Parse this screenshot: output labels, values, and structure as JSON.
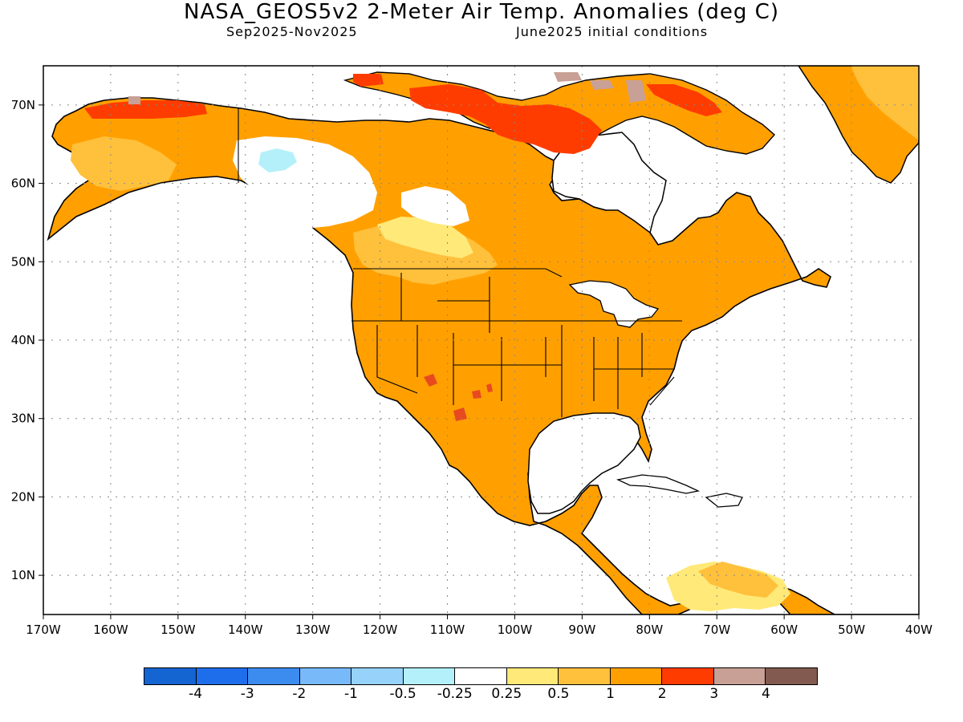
{
  "title": "NASA_GEOS5v2 2-Meter Air Temp. Anomalies (deg C)",
  "subtitle_left": "Sep2025-Nov2025",
  "subtitle_right": "June2025 initial conditions",
  "map": {
    "lon_range": [
      -170,
      -40
    ],
    "lat_range": [
      5,
      75
    ],
    "lon_ticks": [
      "170W",
      "160W",
      "150W",
      "140W",
      "130W",
      "120W",
      "110W",
      "100W",
      "90W",
      "80W",
      "70W",
      "60W",
      "50W",
      "40W"
    ],
    "lat_ticks": [
      "10N",
      "20N",
      "30N",
      "40N",
      "50N",
      "60N",
      "70N"
    ],
    "grid": "dotted"
  },
  "colorbar": {
    "colors": [
      "#1464d2",
      "#1e6eeb",
      "#3c8cf0",
      "#78b9fa",
      "#96d2fa",
      "#b4f0fa",
      "#ffffff",
      "#ffe978",
      "#ffc03c",
      "#ffa000",
      "#ff3c00",
      "#c8a096",
      "#825a50"
    ],
    "labels": [
      "-4",
      "-3",
      "-2",
      "-1",
      "-0.5",
      "-0.25",
      "0.25",
      "0.5",
      "1",
      "2",
      "3",
      "4"
    ]
  },
  "colors": {
    "anomaly_1_2": "#ffa000",
    "anomaly_05_1": "#ffc03c",
    "anomaly_025_05": "#ffe978",
    "anomaly_2_3": "#ff3c00",
    "anomaly_3_4": "#c8a096",
    "anomaly_neg": "#b4f0fa",
    "coastline": "#000000"
  }
}
